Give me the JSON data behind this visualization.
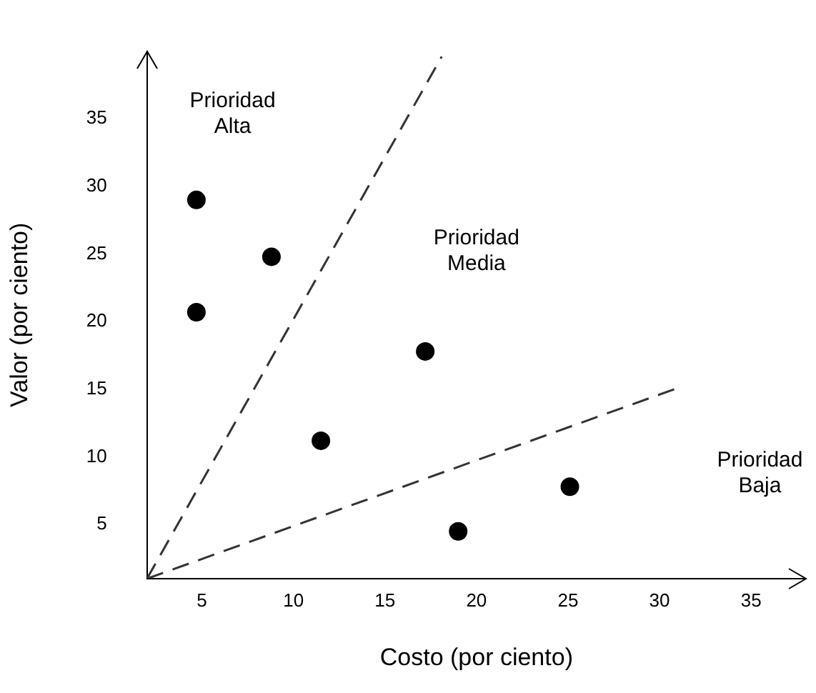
{
  "chart_data": {
    "type": "scatter",
    "xlabel": "Costo (por ciento)",
    "ylabel": "Valor (por ciento)",
    "series": [
      {
        "type": "scatter",
        "color": "#000000",
        "marker": "circle",
        "x": [
          4.7,
          8.8,
          4.7,
          17.2,
          11.5,
          25.1,
          19
        ],
        "values": [
          29,
          24.8,
          20.7,
          17.8,
          11.2,
          7.8,
          4.5
        ]
      },
      {
        "type": "line",
        "color": "#333333",
        "line_style": "dashed",
        "marker": "none",
        "x": [
          2,
          18.1
        ],
        "values": [
          1,
          39.6
        ]
      },
      {
        "type": "line",
        "color": "#333333",
        "line_style": "dashed",
        "marker": "none",
        "x": [
          2,
          31
        ],
        "values": [
          1,
          15.1
        ]
      }
    ],
    "xlim": [
      2,
      38
    ],
    "ylim": [
      1,
      40
    ],
    "xticks": [
      5,
      10,
      15,
      20,
      25,
      30,
      35
    ],
    "yticks": [
      5,
      10,
      15,
      20,
      25,
      30,
      35
    ],
    "grid": false,
    "legend": false,
    "annotations": [
      "Prioridad\nAlta",
      "Prioridad\nMedia",
      "Prioridad\nBaja"
    ]
  }
}
